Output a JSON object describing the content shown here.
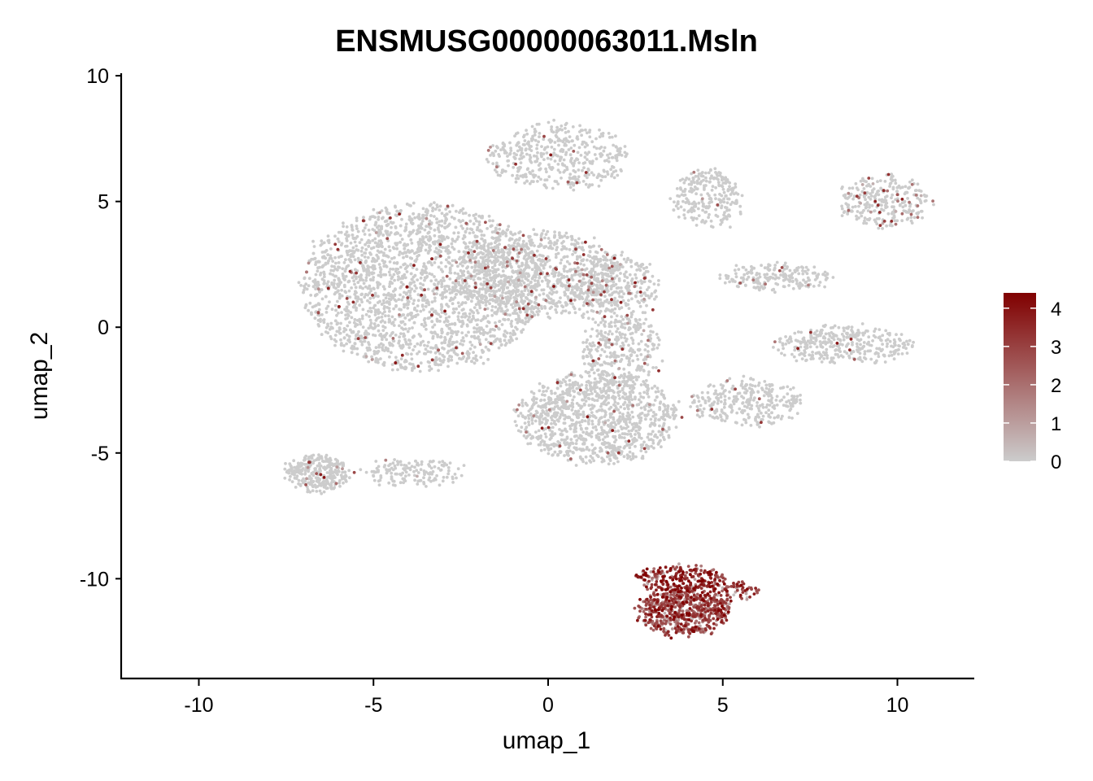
{
  "chart_data": {
    "type": "scatter",
    "title": "ENSMUSG00000063011.Msln",
    "xlabel": "umap_1",
    "ylabel": "umap_2",
    "xlim": [
      -12.2,
      12.2
    ],
    "ylim": [
      -14.0,
      10.1
    ],
    "x_ticks": [
      -10,
      -5,
      0,
      5,
      10
    ],
    "x_tick_labels": [
      "-10",
      "-5",
      "0",
      "5",
      "10"
    ],
    "y_ticks": [
      -10,
      -5,
      0,
      5,
      10
    ],
    "y_tick_labels": [
      "-10",
      "-5",
      "0",
      "5",
      "10"
    ],
    "grid": false,
    "colors": {
      "low": "#cccccc",
      "high": "#800000"
    },
    "legend": {
      "position": "right",
      "min": 0,
      "max": 4.4,
      "ticks": [
        0,
        1,
        2,
        3,
        4
      ],
      "tick_labels": [
        "0",
        "1",
        "2",
        "3",
        "4"
      ]
    },
    "clusters": [
      {
        "name": "left-main",
        "cx": -3.6,
        "cy": 1.6,
        "rx": 3.4,
        "ry": 3.3,
        "n": 2600,
        "expr": 0.03
      },
      {
        "name": "left-bridge",
        "cx": -0.3,
        "cy": 2.1,
        "rx": 2.4,
        "ry": 1.7,
        "n": 900,
        "expr": 0.05
      },
      {
        "name": "mid-right-bridge",
        "cx": 1.8,
        "cy": 1.5,
        "rx": 1.3,
        "ry": 1.4,
        "n": 350,
        "expr": 0.08
      },
      {
        "name": "top-mid",
        "cx": 0.3,
        "cy": 6.8,
        "rx": 2.0,
        "ry": 1.3,
        "n": 450,
        "expr": 0.02
      },
      {
        "name": "top-right-small",
        "cx": 4.6,
        "cy": 5.1,
        "rx": 1.0,
        "ry": 1.1,
        "n": 250,
        "expr": 0.01
      },
      {
        "name": "far-right-top",
        "cx": 9.6,
        "cy": 5.0,
        "rx": 1.3,
        "ry": 1.0,
        "n": 280,
        "expr": 0.12
      },
      {
        "name": "center-lower",
        "cx": 1.4,
        "cy": -3.6,
        "rx": 2.3,
        "ry": 1.8,
        "n": 1100,
        "expr": 0.02
      },
      {
        "name": "center-upper-arm",
        "cx": 2.1,
        "cy": -0.9,
        "rx": 1.1,
        "ry": 1.4,
        "n": 300,
        "expr": 0.04
      },
      {
        "name": "lower-left",
        "cx": -6.6,
        "cy": -5.8,
        "rx": 0.9,
        "ry": 0.7,
        "n": 300,
        "expr": 0.02
      },
      {
        "name": "lower-left-tail",
        "cx": -3.9,
        "cy": -5.8,
        "rx": 1.4,
        "ry": 0.5,
        "n": 150,
        "expr": 0.01
      },
      {
        "name": "arm-right-middle",
        "cx": 8.5,
        "cy": -0.7,
        "rx": 2.0,
        "ry": 0.7,
        "n": 350,
        "expr": 0.03
      },
      {
        "name": "arm-right-lower",
        "cx": 5.7,
        "cy": -3.0,
        "rx": 1.6,
        "ry": 0.9,
        "n": 300,
        "expr": 0.01
      },
      {
        "name": "arm-upper-right",
        "cx": 6.5,
        "cy": 2.0,
        "rx": 1.6,
        "ry": 0.5,
        "n": 200,
        "expr": 0.02
      },
      {
        "name": "msln-cluster",
        "cx": 3.9,
        "cy": -11.3,
        "rx": 1.3,
        "ry": 0.9,
        "n": 650,
        "expr": 2.8
      },
      {
        "name": "msln-cluster-top",
        "cx": 3.8,
        "cy": -10.0,
        "rx": 1.3,
        "ry": 0.5,
        "n": 250,
        "expr": 3.5
      },
      {
        "name": "msln-cluster-tail",
        "cx": 5.4,
        "cy": -10.5,
        "rx": 0.7,
        "ry": 0.3,
        "n": 60,
        "expr": 3.0
      }
    ]
  }
}
